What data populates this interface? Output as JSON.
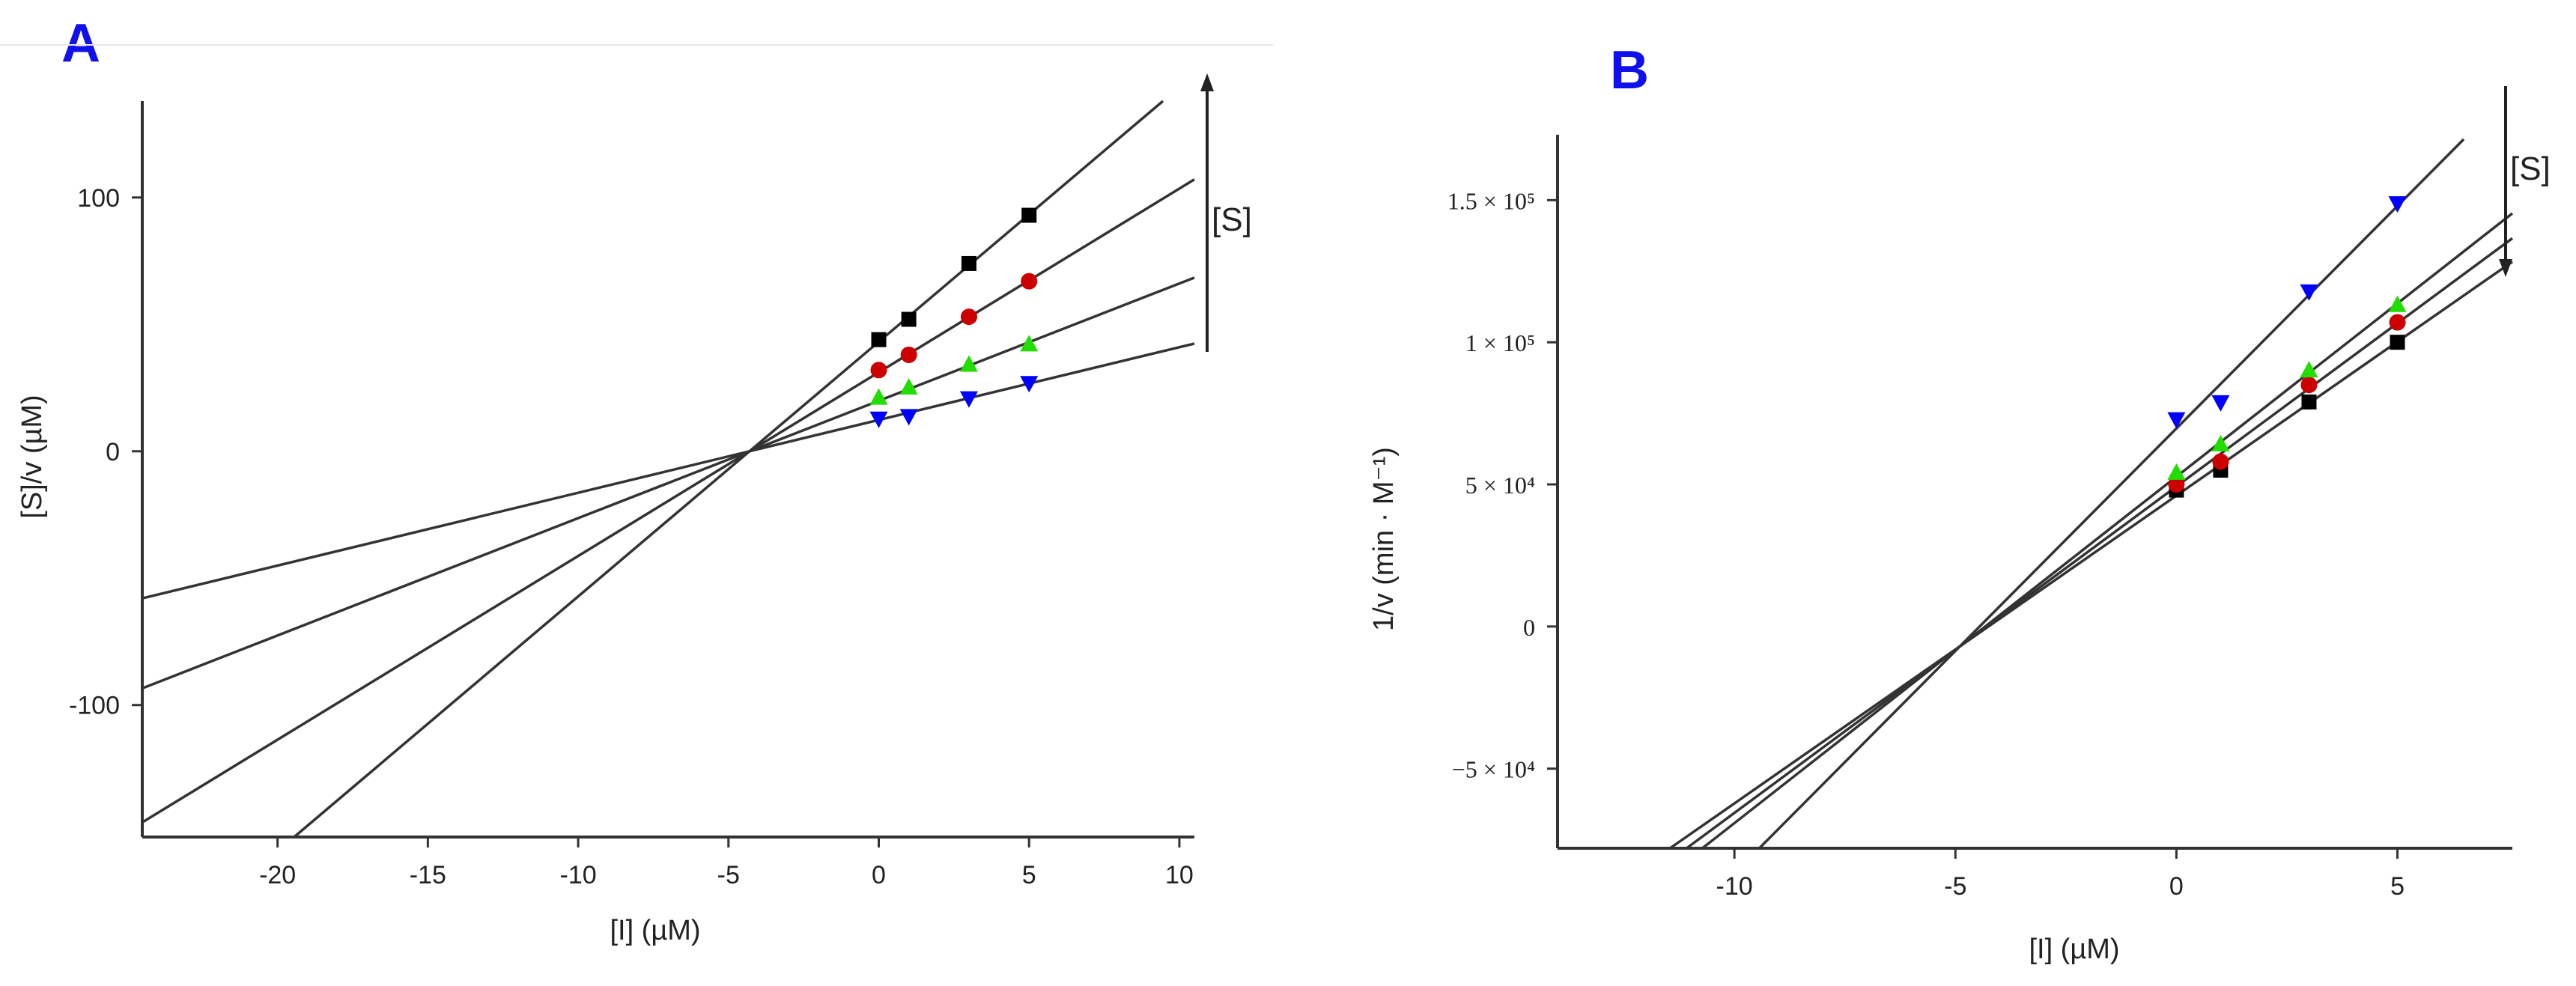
{
  "chart_data": [
    {
      "panel": "A",
      "type": "line",
      "title": "",
      "xlabel": "[I] (µM)",
      "ylabel": "[S]/v (µM)",
      "xlim": [
        -24.5,
        10.5
      ],
      "ylim": [
        -152,
        138
      ],
      "x_ticks": [
        -20,
        -15,
        -10,
        -5,
        0,
        5,
        10
      ],
      "y_ticks": [
        -100,
        0,
        100
      ],
      "concentration_label": "[S]",
      "x": [
        0,
        1,
        3,
        5
      ],
      "series": [
        {
          "name": "series-1",
          "color": "#000000",
          "marker": "square",
          "values": [
            44,
            52,
            74,
            93
          ],
          "line_end_x": 9.5
        },
        {
          "name": "series-2",
          "color": "#cc0000",
          "marker": "circle",
          "values": [
            32,
            38,
            53,
            67
          ],
          "line_end_x": 10.5
        },
        {
          "name": "series-3",
          "color": "#22dd00",
          "marker": "triangle-up",
          "values": [
            21,
            25,
            34,
            42
          ],
          "line_end_x": 10.5
        },
        {
          "name": "series-4",
          "color": "#0000ff",
          "marker": "triangle-down",
          "values": [
            13,
            14,
            21,
            27
          ],
          "line_end_x": 10.5
        }
      ],
      "intersection": [
        -4.3,
        0
      ]
    },
    {
      "panel": "B",
      "type": "line",
      "title": "",
      "xlabel": "[I] (µM)",
      "ylabel": "1/v (min · M⁻¹)",
      "xlim": [
        -14,
        7.6
      ],
      "ylim": [
        -78000,
        173000
      ],
      "x_ticks": [
        -10,
        -5,
        0,
        5
      ],
      "y_ticks": [
        -50000,
        0,
        50000,
        100000,
        150000
      ],
      "y_tick_labels": [
        "−5 × 10⁴",
        "0",
        "5 × 10⁴",
        "1 × 10⁵",
        "1.5 × 10⁵"
      ],
      "concentration_label": "[S]",
      "x": [
        0,
        1,
        3,
        5
      ],
      "series": [
        {
          "name": "series-1",
          "color": "#000000",
          "marker": "square",
          "values": [
            48000,
            55000,
            79000,
            100000
          ],
          "line_end_x": 7.6
        },
        {
          "name": "series-2",
          "color": "#cc0000",
          "marker": "circle",
          "values": [
            50000,
            58000,
            85000,
            107000
          ],
          "line_end_x": 7.6
        },
        {
          "name": "series-3",
          "color": "#22dd00",
          "marker": "triangle-up",
          "values": [
            54000,
            64000,
            90000,
            113000
          ],
          "line_end_x": 7.6
        },
        {
          "name": "series-4",
          "color": "#0000ff",
          "marker": "triangle-down",
          "values": [
            73000,
            79000,
            118000,
            149000
          ],
          "line_end_x": 6.5
        }
      ],
      "intersection": [
        -4.9,
        -7000
      ]
    }
  ],
  "panels": {
    "a_label": "A",
    "b_label": "B"
  },
  "colors": {
    "panel_label": "#1010ee",
    "axis": "#333333",
    "fit_line": "#333333"
  }
}
